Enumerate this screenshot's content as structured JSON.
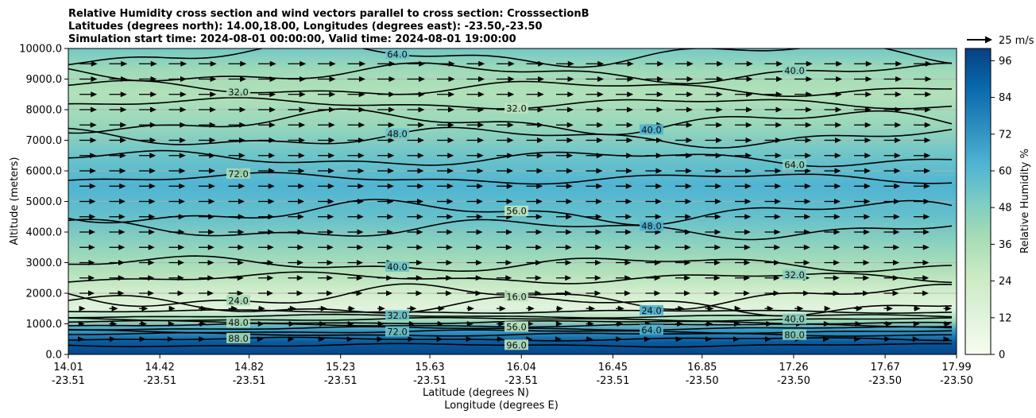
{
  "chart_data": {
    "type": "contour",
    "title": [
      "Relative Humidity cross section and wind vectors parallel to cross section: CrosssectionB",
      "Latitudes (degrees north): 14.00,18.00, Longitudes (degrees east): -23.50,-23.50",
      "Simulation start time: 2024-08-01 00:00:00, Valid time: 2024-08-01 19:00:00"
    ],
    "ylabel": "Altitude (meters)",
    "xlabel_lat": "Latitude (degrees N)",
    "xlabel_lon": "Longitude (degrees E)",
    "ylim": [
      0,
      10000
    ],
    "y_ticks": [
      "0.0",
      "1000.0",
      "2000.0",
      "3000.0",
      "4000.0",
      "5000.0",
      "6000.0",
      "7000.0",
      "8000.0",
      "9000.0",
      "10000.0"
    ],
    "x_tick_lat": [
      "14.01",
      "14.42",
      "14.82",
      "15.23",
      "15.63",
      "16.04",
      "16.45",
      "16.85",
      "17.26",
      "17.67",
      "17.99"
    ],
    "x_tick_lon": [
      "-23.51",
      "-23.51",
      "-23.51",
      "-23.51",
      "-23.51",
      "-23.51",
      "-23.51",
      "-23.50",
      "-23.50",
      "-23.50",
      "-23.50"
    ],
    "grid": "horizontal",
    "colorbar": {
      "label": "Relative Humidity %",
      "ticks": [
        "0",
        "12",
        "24",
        "36",
        "48",
        "60",
        "72",
        "84",
        "96"
      ],
      "range": [
        0,
        100
      ],
      "colormap": "GnBu"
    },
    "quiver_key": "25 m/s",
    "contour_levels": [
      {
        "level": "96.0",
        "altitude_m": 300
      },
      {
        "level": "88.0",
        "altitude_m": 500
      },
      {
        "level": "80.0",
        "altitude_m": 650
      },
      {
        "level": "72.0",
        "altitude_m": 750
      },
      {
        "level": "64.0",
        "altitude_m": 850
      },
      {
        "level": "56.0",
        "altitude_m": 950
      },
      {
        "level": "48.0",
        "altitude_m": 1050
      },
      {
        "level": "40.0",
        "altitude_m": 1150
      },
      {
        "level": "32.0",
        "altitude_m": 1250
      },
      {
        "level": "24.0",
        "altitude_m": 1400
      },
      {
        "level": "16.0",
        "altitude_m": 1600
      },
      {
        "level": "24.0",
        "altitude_m": 1900
      },
      {
        "level": "32.0",
        "altitude_m": 2500
      },
      {
        "level": "40.0",
        "altitude_m": 2950
      },
      {
        "level": "48.0",
        "altitude_m": 4100
      },
      {
        "level": "56.0",
        "altitude_m": 4650
      },
      {
        "level": "72.0",
        "altitude_m": 5750
      },
      {
        "level": "64.0",
        "altitude_m": 6400
      },
      {
        "level": "48.0",
        "altitude_m": 7100
      },
      {
        "level": "40.0",
        "altitude_m": 7600
      },
      {
        "level": "32.0",
        "altitude_m": 8200
      },
      {
        "level": "32.0",
        "altitude_m": 8700
      },
      {
        "level": "40.0",
        "altitude_m": 9200
      },
      {
        "level": "64.0",
        "altitude_m": 9800
      }
    ],
    "rh_profile": [
      {
        "altitude_m": 0,
        "rh": 98
      },
      {
        "altitude_m": 400,
        "rh": 92
      },
      {
        "altitude_m": 800,
        "rh": 70
      },
      {
        "altitude_m": 1100,
        "rh": 40
      },
      {
        "altitude_m": 1500,
        "rh": 12
      },
      {
        "altitude_m": 2000,
        "rh": 20
      },
      {
        "altitude_m": 2700,
        "rh": 34
      },
      {
        "altitude_m": 3500,
        "rh": 44
      },
      {
        "altitude_m": 4500,
        "rh": 56
      },
      {
        "altitude_m": 5500,
        "rh": 62
      },
      {
        "altitude_m": 6500,
        "rh": 54
      },
      {
        "altitude_m": 7500,
        "rh": 42
      },
      {
        "altitude_m": 8500,
        "rh": 34
      },
      {
        "altitude_m": 9300,
        "rh": 40
      },
      {
        "altitude_m": 10000,
        "rh": 52
      }
    ]
  },
  "colors": {
    "ramp": [
      "#f7fcf0",
      "#e0f3db",
      "#ccebc5",
      "#a8ddb5",
      "#7bccc4",
      "#4eb3d3",
      "#2b8cbe",
      "#0868ac",
      "#084081"
    ],
    "contour": "#000000",
    "grid": "#b0b0b0"
  }
}
